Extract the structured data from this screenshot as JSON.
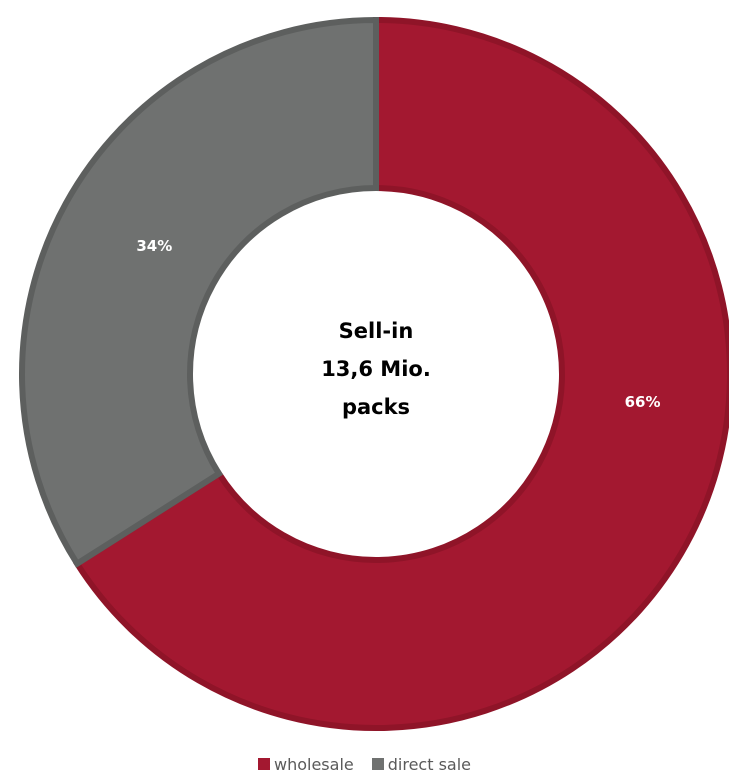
{
  "chart_data": {
    "type": "pie",
    "variant": "donut",
    "center_label": [
      "Sell-in",
      "13,6 Mio.",
      "packs"
    ],
    "slices": [
      {
        "name": "wholesale",
        "value": 66,
        "label": "66%",
        "color": "#a31830",
        "border": "#8f1428"
      },
      {
        "name": "direct sale",
        "value": 34,
        "label": "34%",
        "color": "#6f7170",
        "border": "#5d5f5e"
      }
    ],
    "start_angle_deg": 0,
    "direction": "clockwise",
    "legend_position": "bottom"
  }
}
